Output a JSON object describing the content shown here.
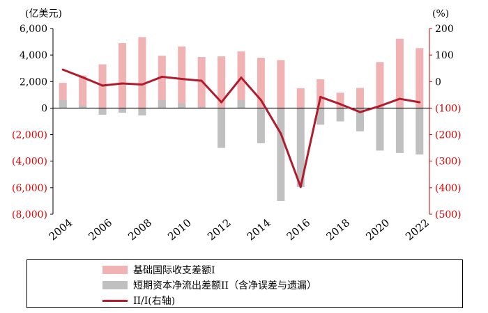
{
  "chart_data": {
    "type": "bar",
    "left_unit": "(亿美元)",
    "right_unit": "(%)",
    "categories": [
      "2004",
      "2005",
      "2006",
      "2007",
      "2008",
      "2009",
      "2010",
      "2011",
      "2012",
      "2013",
      "2014",
      "2015",
      "2016",
      "2017",
      "2018",
      "2019",
      "2020",
      "2021",
      "2022"
    ],
    "xtick_labels": [
      "2004",
      "2006",
      "2008",
      "2010",
      "2012",
      "2014",
      "2016",
      "2018",
      "2020",
      "2022"
    ],
    "left_yticks": [
      "6,000",
      "4,000",
      "2,000",
      "0",
      "(2,000)",
      "(4,000)",
      "(6,000)",
      "(8,000)"
    ],
    "right_yticks": [
      "200",
      "100",
      "0",
      "(100)",
      "(200)",
      "(300)",
      "(400)",
      "(500)"
    ],
    "ylim_left": [
      -8000,
      6000
    ],
    "ylim_right": [
      -500,
      200
    ],
    "series": [
      {
        "name": "基础国际收支差额I",
        "type": "bar",
        "axis": "left",
        "color": "#f0b2b2",
        "values": [
          1900,
          2450,
          3300,
          4900,
          5350,
          3950,
          4650,
          3850,
          3900,
          4280,
          3800,
          3620,
          1500,
          2170,
          1160,
          1520,
          3470,
          5230,
          4520
        ]
      },
      {
        "name": "短期资本净流出差额II（含净误差与遗漏）",
        "type": "bar",
        "axis": "left",
        "color": "#c0c0c0",
        "values": [
          600,
          200,
          -500,
          -350,
          -550,
          600,
          350,
          100,
          -3000,
          600,
          -2650,
          -7000,
          -5950,
          -1250,
          -1000,
          -1750,
          -3200,
          -3380,
          -3500
        ]
      },
      {
        "name": "II/I(右轴)",
        "type": "line",
        "axis": "right",
        "color": "#b01c2e",
        "values": [
          45,
          16,
          -15,
          -7,
          -11,
          18,
          10,
          3,
          -78,
          15,
          -70,
          -196,
          -397,
          -58,
          -85,
          -115,
          -92,
          -65,
          -78
        ]
      }
    ]
  }
}
